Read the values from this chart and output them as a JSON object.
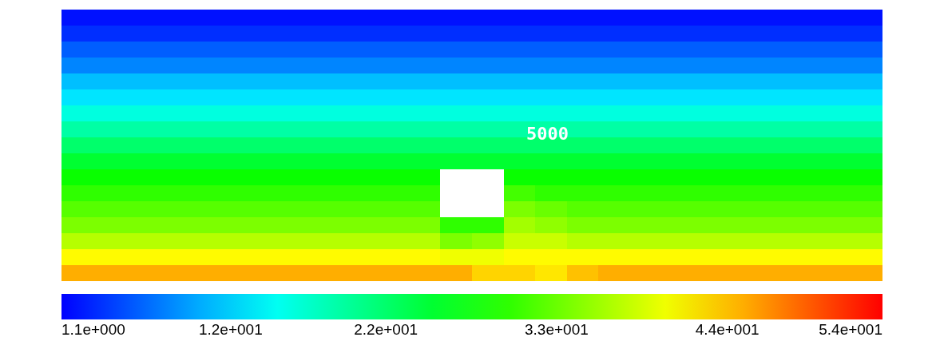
{
  "chart_data": {
    "type": "heatmap",
    "categories": [
      null,
      null,
      null,
      null,
      null,
      null,
      null,
      null,
      null,
      null,
      null,
      null,
      null,
      null,
      null,
      null,
      null,
      null,
      null,
      null,
      null,
      null,
      null,
      null,
      null,
      null
    ],
    "y_categories": [
      null,
      null,
      null,
      null,
      null,
      null,
      null,
      null,
      null,
      null,
      null,
      null,
      null,
      null,
      null,
      null,
      null
    ],
    "cells": [
      [
        2,
        2,
        2,
        2,
        2,
        2,
        2,
        2,
        2,
        2,
        2,
        2,
        2,
        2,
        2,
        2,
        2,
        2,
        2,
        2,
        2,
        2,
        2,
        2,
        2,
        2
      ],
      [
        3.5,
        3.5,
        3.5,
        3.5,
        3.5,
        3.5,
        3.5,
        3.5,
        3.5,
        3.5,
        3.5,
        3.5,
        3.5,
        3.5,
        3.5,
        3.5,
        3.5,
        3.5,
        3.5,
        3.5,
        3.5,
        3.5,
        3.5,
        3.5,
        3.5,
        3.5
      ],
      [
        6,
        6,
        6,
        6,
        6,
        6,
        6,
        6,
        6,
        6,
        6,
        6,
        6,
        6,
        6,
        6,
        6,
        6,
        6,
        6,
        6,
        6,
        6,
        6,
        6,
        6
      ],
      [
        8,
        8,
        8,
        8,
        8,
        8,
        8,
        8,
        8,
        8,
        8,
        8,
        8,
        8,
        8,
        8,
        8,
        8,
        8,
        8,
        8,
        8,
        8,
        8,
        8,
        8
      ],
      [
        11,
        11,
        11,
        11,
        11,
        11,
        11,
        11,
        11,
        11,
        11,
        11,
        11,
        11,
        11,
        11,
        11,
        11,
        11,
        11,
        11,
        11,
        11,
        11,
        11,
        11
      ],
      [
        13,
        13,
        13,
        13,
        13,
        13,
        13,
        13,
        13,
        13,
        13,
        13,
        13,
        13,
        13,
        13,
        13,
        13,
        13,
        13,
        13,
        13,
        13,
        13,
        13,
        13
      ],
      [
        16,
        16,
        16,
        16,
        16,
        16,
        16,
        16,
        16,
        16,
        16,
        16,
        16,
        16,
        16,
        16,
        16,
        16,
        16,
        16,
        16,
        16,
        16,
        16,
        16,
        16
      ],
      [
        19,
        19,
        19,
        19,
        19,
        19,
        19,
        19,
        19,
        19,
        19,
        19,
        19,
        19,
        19,
        19,
        19,
        19,
        19,
        19,
        19,
        19,
        19,
        19,
        19,
        19
      ],
      [
        22,
        22,
        22,
        22,
        22,
        22,
        22,
        22,
        22,
        22,
        22,
        22,
        22,
        22,
        22,
        22,
        22,
        22,
        22,
        22,
        22,
        22,
        22,
        22,
        22,
        22
      ],
      [
        25,
        25,
        25,
        25,
        25,
        25,
        25,
        25,
        25,
        25,
        25,
        25,
        25,
        25,
        25,
        25,
        25,
        25,
        25,
        25,
        25,
        25,
        25,
        25,
        25,
        25
      ],
      [
        28,
        28,
        28,
        28,
        28,
        28,
        28,
        28,
        28,
        28,
        28,
        28,
        null,
        null,
        28,
        28,
        28,
        28,
        28,
        28,
        28,
        28,
        28,
        28,
        28,
        28
      ],
      [
        30,
        30,
        30,
        30,
        30,
        30,
        30,
        30,
        30,
        30,
        30,
        30,
        null,
        null,
        31,
        30,
        30,
        30,
        30,
        30,
        30,
        30,
        30,
        30,
        30,
        30
      ],
      [
        32,
        32,
        32,
        32,
        32,
        32,
        32,
        32,
        32,
        32,
        32,
        32,
        null,
        null,
        34,
        33,
        32,
        32,
        32,
        32,
        32,
        32,
        32,
        32,
        32,
        32
      ],
      [
        34,
        34,
        34,
        34,
        34,
        34,
        34,
        34,
        34,
        34,
        34,
        34,
        30,
        30,
        36,
        35,
        34,
        34,
        34,
        34,
        34,
        34,
        34,
        34,
        34,
        34
      ],
      [
        37,
        37,
        37,
        37,
        37,
        37,
        37,
        37,
        37,
        37,
        37,
        37,
        34,
        35,
        38,
        38,
        37,
        37,
        37,
        37,
        37,
        37,
        37,
        37,
        37,
        37
      ],
      [
        41,
        41,
        41,
        41,
        41,
        41,
        41,
        41,
        41,
        41,
        41,
        41,
        40,
        40,
        41,
        41,
        41,
        41,
        41,
        41,
        41,
        41,
        41,
        41,
        41,
        41
      ],
      [
        45,
        45,
        45,
        45,
        45,
        45,
        45,
        45,
        45,
        45,
        45,
        45,
        45,
        43,
        43,
        42,
        44,
        45,
        45,
        45,
        45,
        45,
        45,
        45,
        45,
        45
      ]
    ],
    "clim": [
      1.1,
      54
    ],
    "cticks": [
      {
        "value": 1.1,
        "label": "1.1e+000"
      },
      {
        "value": 12,
        "label": "1.2e+001"
      },
      {
        "value": 22,
        "label": "2.2e+001"
      },
      {
        "value": 33,
        "label": "3.3e+001"
      },
      {
        "value": 44,
        "label": "4.4e+001"
      },
      {
        "value": 54,
        "label": "5.4e+001"
      }
    ],
    "annotations": [
      "5000"
    ],
    "tick_labels": false
  }
}
